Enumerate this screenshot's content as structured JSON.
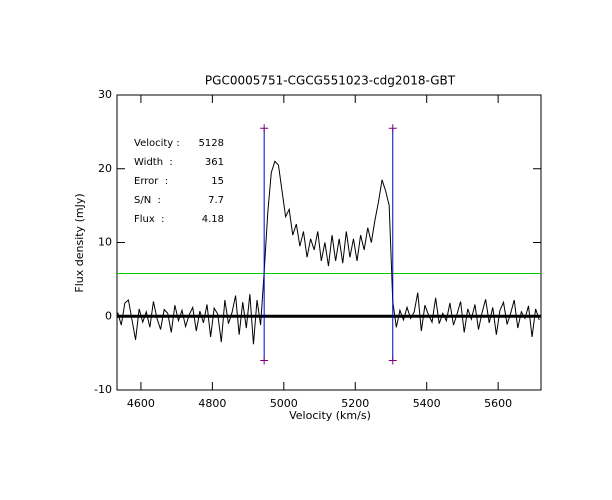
{
  "chart_data": {
    "type": "line",
    "title": "PGC0005751-CGCG551023-cdg2018-GBT",
    "xlabel": "Velocity (km/s)",
    "ylabel": "Flux density (mJy)",
    "xlim": [
      4533,
      5720
    ],
    "ylim": [
      -10,
      30
    ],
    "xticks": [
      4600,
      4800,
      5000,
      5200,
      5400,
      5600
    ],
    "yticks": [
      -10,
      0,
      10,
      20,
      30
    ],
    "x": [
      4535,
      4545,
      4555,
      4565,
      4575,
      4585,
      4595,
      4605,
      4615,
      4625,
      4635,
      4645,
      4655,
      4665,
      4675,
      4685,
      4695,
      4705,
      4715,
      4725,
      4735,
      4745,
      4755,
      4765,
      4775,
      4785,
      4795,
      4805,
      4815,
      4825,
      4835,
      4845,
      4855,
      4865,
      4875,
      4885,
      4895,
      4905,
      4915,
      4925,
      4935,
      4945,
      4955,
      4965,
      4975,
      4985,
      4995,
      5005,
      5015,
      5025,
      5035,
      5045,
      5055,
      5065,
      5075,
      5085,
      5095,
      5105,
      5115,
      5125,
      5135,
      5145,
      5155,
      5165,
      5175,
      5185,
      5195,
      5205,
      5215,
      5225,
      5235,
      5245,
      5255,
      5265,
      5275,
      5285,
      5295,
      5305,
      5315,
      5325,
      5335,
      5345,
      5355,
      5365,
      5375,
      5385,
      5395,
      5405,
      5415,
      5425,
      5435,
      5445,
      5455,
      5465,
      5475,
      5485,
      5495,
      5505,
      5515,
      5525,
      5535,
      5545,
      5555,
      5565,
      5575,
      5585,
      5595,
      5605,
      5615,
      5625,
      5635,
      5645,
      5655,
      5665,
      5675,
      5685,
      5695,
      5705,
      5715
    ],
    "series": [
      {
        "color": "#000000",
        "values": [
          0.5,
          -1.2,
          1.8,
          2.2,
          -0.5,
          -3.2,
          1.0,
          -0.8,
          0.6,
          -1.5,
          2.0,
          -0.3,
          -1.8,
          0.9,
          0.4,
          -2.2,
          1.5,
          -0.6,
          0.8,
          -1.4,
          0.2,
          1.2,
          -2.0,
          0.7,
          -0.9,
          1.6,
          -2.8,
          1.1,
          0.3,
          -3.5,
          2.2,
          -1.0,
          0.5,
          2.8,
          -2.5,
          1.9,
          -1.6,
          3.0,
          -3.8,
          2.2,
          -1.2,
          6,
          14,
          19.5,
          21,
          20.5,
          17,
          13.5,
          14.5,
          11,
          12.5,
          9.5,
          11.5,
          8,
          10.5,
          9,
          11.5,
          7.5,
          10,
          6.8,
          11,
          7.5,
          10.5,
          7.2,
          11.5,
          8,
          10.5,
          7.5,
          11,
          9,
          12,
          10,
          13,
          15.5,
          18.5,
          17,
          15,
          2,
          -1.5,
          0.8,
          -0.5,
          1.2,
          -0.3,
          0.6,
          3.2,
          -2.0,
          1.5,
          0.2,
          -0.8,
          2.5,
          -1.0,
          0.4,
          -0.6,
          1.8,
          -1.2,
          0.3,
          2.0,
          -2.2,
          1.0,
          -0.4,
          1.6,
          -1.8,
          0.5,
          2.3,
          -0.9,
          1.2,
          -2.5,
          0.8,
          1.9,
          -1.1,
          0.4,
          2.2,
          -1.6,
          0.6,
          -0.3,
          1.4,
          -2.8,
          1.0,
          -0.5
        ]
      }
    ],
    "baseline": 0,
    "level": 5.8,
    "level_color": "#00cc00",
    "edges": {
      "x": [
        4945,
        5305
      ],
      "y": [
        -6,
        25.5
      ],
      "color": "#0000cc",
      "end_color": "#800080"
    },
    "annotation_color": "#1a1aa6",
    "annotations": [
      {
        "label": "Velocity :",
        "value": 5128
      },
      {
        "label": "Width  :",
        "value": 361
      },
      {
        "label": "Error  :",
        "value": 15
      },
      {
        "label": "S/N  :",
        "value": 7.7
      },
      {
        "label": "Flux  :",
        "value": 4.18
      }
    ]
  }
}
